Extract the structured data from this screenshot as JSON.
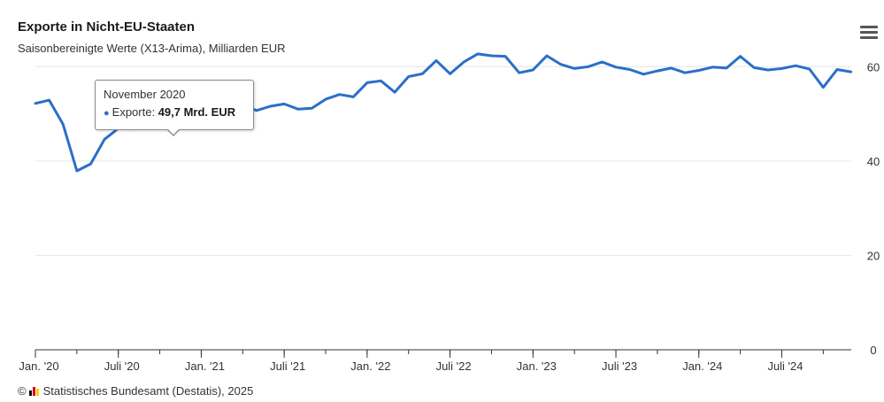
{
  "header": {
    "title": "Exporte in Nicht-EU-Staaten",
    "subtitle": "Saisonbereinigte Werte (X13-Arima), Milliarden EUR",
    "menu_icon": "hamburger-menu-icon"
  },
  "tooltip": {
    "date": "November 2020",
    "series_label": "Exporte: ",
    "value_text": "49,7 Mrd. EUR"
  },
  "credits": {
    "copyright_symbol": "©",
    "text": "Statistisches Bundesamt (Destatis), 2025"
  },
  "colors": {
    "series": "#2a6fc9",
    "grid": "#e6e6e6",
    "axis": "#333333",
    "logo": [
      "#000000",
      "#dd0000",
      "#ffcc00"
    ]
  },
  "chart_data": {
    "type": "line",
    "title": "Exporte in Nicht-EU-Staaten",
    "subtitle": "Saisonbereinigte Werte (X13-Arima), Milliarden EUR",
    "xlabel": "",
    "ylabel": "",
    "ylim": [
      0,
      70
    ],
    "yticks": [
      0,
      20,
      40,
      60
    ],
    "y_axis_side": "right",
    "grid": true,
    "legend": "none",
    "x_start": "2020-01",
    "x_ticks": [
      {
        "index": 0,
        "label": "Jan. '20"
      },
      {
        "index": 6,
        "label": "Juli '20"
      },
      {
        "index": 12,
        "label": "Jan. '21"
      },
      {
        "index": 18,
        "label": "Juli '21"
      },
      {
        "index": 24,
        "label": "Jan. '22"
      },
      {
        "index": 30,
        "label": "Juli '22"
      },
      {
        "index": 36,
        "label": "Jan. '23"
      },
      {
        "index": 42,
        "label": "Juli '23"
      },
      {
        "index": 48,
        "label": "Jan. '24"
      },
      {
        "index": 54,
        "label": "Juli '24"
      }
    ],
    "series": [
      {
        "name": "Exporte",
        "values": [
          52.2,
          52.9,
          47.8,
          37.9,
          39.4,
          44.6,
          46.9,
          46.8,
          48.4,
          48.9,
          49.7,
          51.3,
          50.6,
          50.6,
          51.3,
          51.9,
          50.7,
          51.6,
          52.1,
          51.0,
          51.2,
          53.1,
          54.1,
          53.6,
          56.6,
          57.0,
          54.6,
          57.9,
          58.5,
          61.3,
          58.5,
          61.0,
          62.7,
          62.3,
          62.2,
          58.7,
          59.3,
          62.3,
          60.5,
          59.6,
          60.0,
          61.0,
          59.9,
          59.4,
          58.4,
          59.1,
          59.7,
          58.7,
          59.2,
          59.9,
          59.7,
          62.2,
          59.8,
          59.3,
          59.6,
          60.2,
          59.5,
          55.6,
          59.4,
          58.9
        ]
      }
    ],
    "highlight": {
      "index": 10,
      "label": "November 2020",
      "value": 49.7
    }
  }
}
